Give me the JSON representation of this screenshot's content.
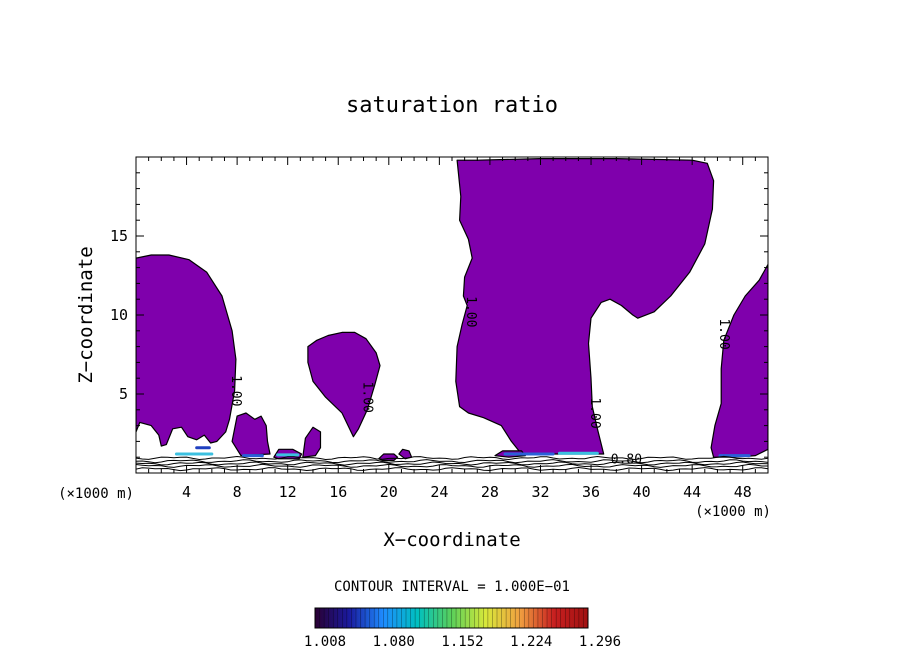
{
  "chart_data": {
    "type": "contour",
    "title": "saturation ratio",
    "xlabel": "X−coordinate",
    "ylabel": "Z−coordinate",
    "x_unit_left": "(×1000 m)",
    "x_unit_right": "(×1000 m)",
    "xlim": [
      0,
      50
    ],
    "ylim": [
      0,
      20
    ],
    "xticks": [
      4,
      8,
      12,
      16,
      20,
      24,
      28,
      32,
      36,
      40,
      44,
      48
    ],
    "yticks": [
      5,
      10,
      15
    ],
    "contour_labels": [
      {
        "text": "1.00",
        "x": 7.6,
        "z": 5.2
      },
      {
        "text": "1.00",
        "x": 18.0,
        "z": 4.8
      },
      {
        "text": "1.00",
        "x": 26.2,
        "z": 10.2
      },
      {
        "text": "1.00",
        "x": 36.0,
        "z": 3.8
      },
      {
        "text": "1.00",
        "x": 46.2,
        "z": 8.8
      },
      {
        "text": "0.80",
        "x": 38.8,
        "z": 0.6
      }
    ],
    "contour_interval_text": "CONTOUR INTERVAL = 1.000E−01",
    "colorbar": {
      "labels": [
        "1.008",
        "1.080",
        "1.152",
        "1.224",
        "1.296"
      ],
      "range": [
        1.008,
        1.296
      ]
    },
    "colors": {
      "fill": "#7f00ac",
      "contour": "#000000",
      "colorbar_stops": [
        "#2a0033",
        "#1a1a9e",
        "#1e8cff",
        "#00c0c0",
        "#5ad05a",
        "#d8e83a",
        "#f0a040",
        "#c82020",
        "#a01010"
      ]
    },
    "shaded_regions": [
      {
        "name": "region-left",
        "boundary": [
          [
            0,
            2.6
          ],
          [
            0.3,
            3.2
          ],
          [
            1.2,
            3.0
          ],
          [
            1.8,
            2.4
          ],
          [
            2.0,
            1.7
          ],
          [
            2.4,
            1.8
          ],
          [
            2.9,
            2.8
          ],
          [
            3.6,
            2.9
          ],
          [
            4.1,
            2.3
          ],
          [
            4.8,
            2.1
          ],
          [
            5.4,
            2.4
          ],
          [
            5.9,
            1.9
          ],
          [
            6.4,
            2.0
          ],
          [
            7.1,
            2.6
          ],
          [
            7.4,
            3.4
          ],
          [
            7.8,
            5.2
          ],
          [
            7.9,
            7.2
          ],
          [
            7.6,
            9.0
          ],
          [
            6.8,
            11.2
          ],
          [
            5.6,
            12.7
          ],
          [
            4.2,
            13.5
          ],
          [
            2.6,
            13.8
          ],
          [
            1.2,
            13.8
          ],
          [
            0,
            13.6
          ]
        ]
      },
      {
        "name": "region-right-lobe-a",
        "boundary": [
          [
            7.6,
            2.0
          ],
          [
            8.0,
            3.6
          ],
          [
            8.7,
            3.8
          ],
          [
            9.4,
            3.4
          ],
          [
            9.9,
            3.6
          ],
          [
            10.3,
            3.0
          ],
          [
            10.4,
            2.0
          ],
          [
            10.6,
            1.2
          ],
          [
            8.3,
            1.1
          ]
        ]
      },
      {
        "name": "region-mid",
        "boundary": [
          [
            13.6,
            8.0
          ],
          [
            13.6,
            7.0
          ],
          [
            14.0,
            5.8
          ],
          [
            15.0,
            4.8
          ],
          [
            16.3,
            3.8
          ],
          [
            17.2,
            2.3
          ],
          [
            17.6,
            2.8
          ],
          [
            18.3,
            4.0
          ],
          [
            18.9,
            5.6
          ],
          [
            19.3,
            6.8
          ],
          [
            19.0,
            7.6
          ],
          [
            18.2,
            8.5
          ],
          [
            17.3,
            8.9
          ],
          [
            16.3,
            8.9
          ],
          [
            15.2,
            8.7
          ],
          [
            14.3,
            8.4
          ]
        ]
      },
      {
        "name": "region-center",
        "boundary": [
          [
            25.4,
            19.8
          ],
          [
            25.7,
            17.5
          ],
          [
            25.6,
            16.0
          ],
          [
            26.3,
            14.8
          ],
          [
            26.6,
            13.6
          ],
          [
            26.0,
            12.4
          ],
          [
            25.9,
            11.2
          ],
          [
            26.2,
            10.6
          ],
          [
            25.8,
            9.4
          ],
          [
            25.4,
            8.0
          ],
          [
            25.3,
            5.8
          ],
          [
            25.6,
            4.2
          ],
          [
            26.3,
            3.8
          ],
          [
            27.5,
            3.5
          ],
          [
            28.9,
            3.0
          ],
          [
            29.7,
            2.0
          ],
          [
            30.5,
            1.2
          ],
          [
            33.2,
            1.2
          ],
          [
            35.0,
            1.2
          ],
          [
            37.0,
            1.2
          ],
          [
            36.5,
            2.8
          ],
          [
            36.1,
            4.2
          ],
          [
            36.0,
            6.0
          ],
          [
            35.8,
            8.2
          ],
          [
            36.0,
            9.8
          ],
          [
            36.8,
            10.8
          ],
          [
            37.5,
            11.0
          ],
          [
            38.4,
            10.6
          ],
          [
            39.3,
            10.0
          ],
          [
            39.7,
            9.8
          ],
          [
            41.0,
            10.2
          ],
          [
            42.3,
            11.2
          ],
          [
            43.8,
            12.7
          ],
          [
            45.0,
            14.5
          ],
          [
            45.6,
            16.7
          ],
          [
            45.7,
            18.5
          ],
          [
            45.2,
            19.6
          ],
          [
            44.0,
            19.8
          ],
          [
            38.0,
            19.9
          ],
          [
            32.0,
            19.9
          ],
          [
            27.0,
            19.8
          ]
        ]
      },
      {
        "name": "region-right",
        "boundary": [
          [
            50,
            13.2
          ],
          [
            49.3,
            12.2
          ],
          [
            48.2,
            11.2
          ],
          [
            47.3,
            10.0
          ],
          [
            46.5,
            8.4
          ],
          [
            46.3,
            6.6
          ],
          [
            46.3,
            4.4
          ],
          [
            45.8,
            3.0
          ],
          [
            45.5,
            1.6
          ],
          [
            45.7,
            1.0
          ],
          [
            47.5,
            1.0
          ],
          [
            49.0,
            1.1
          ],
          [
            50,
            1.5
          ]
        ]
      },
      {
        "name": "blob-1",
        "boundary": [
          [
            13.2,
            1.0
          ],
          [
            13.4,
            2.2
          ],
          [
            14.0,
            2.9
          ],
          [
            14.6,
            2.6
          ],
          [
            14.6,
            1.6
          ],
          [
            14.2,
            1.1
          ]
        ]
      },
      {
        "name": "blob-2",
        "boundary": [
          [
            10.9,
            1.0
          ],
          [
            11.3,
            1.5
          ],
          [
            12.4,
            1.5
          ],
          [
            13.1,
            1.2
          ],
          [
            12.9,
            0.9
          ],
          [
            11.3,
            0.9
          ]
        ]
      },
      {
        "name": "blob-3",
        "boundary": [
          [
            19.2,
            0.9
          ],
          [
            19.6,
            1.2
          ],
          [
            20.4,
            1.2
          ],
          [
            20.7,
            1.0
          ],
          [
            20.4,
            0.8
          ],
          [
            19.5,
            0.8
          ]
        ]
      },
      {
        "name": "blob-4",
        "boundary": [
          [
            20.8,
            1.2
          ],
          [
            21.1,
            1.5
          ],
          [
            21.6,
            1.4
          ],
          [
            21.8,
            1.0
          ],
          [
            21.3,
            0.9
          ]
        ]
      },
      {
        "name": "blob-5",
        "boundary": [
          [
            28.4,
            1.1
          ],
          [
            29.0,
            1.4
          ],
          [
            30.5,
            1.4
          ],
          [
            30.8,
            1.1
          ],
          [
            29.5,
            1.0
          ]
        ]
      }
    ],
    "highlights": [
      {
        "x": [
          3.2,
          6.0
        ],
        "z": 1.2,
        "color": "#3cc0e0"
      },
      {
        "x": [
          4.8,
          5.8
        ],
        "z": 1.6,
        "color": "#2040c0"
      },
      {
        "x": [
          8.5,
          10.0
        ],
        "z": 1.1,
        "color": "#2a60d8"
      },
      {
        "x": [
          11.2,
          12.8
        ],
        "z": 1.15,
        "color": "#3cc0e0"
      },
      {
        "x": [
          33.5,
          36.5
        ],
        "z": 1.25,
        "color": "#3cc0e0"
      },
      {
        "x": [
          29.2,
          33.0
        ],
        "z": 1.2,
        "color": "#2a60d8"
      },
      {
        "x": [
          46.2,
          48.5
        ],
        "z": 1.1,
        "color": "#2a60d8"
      }
    ],
    "surface_contours": [
      0.25,
      0.45,
      0.6,
      0.75,
      0.95
    ]
  }
}
